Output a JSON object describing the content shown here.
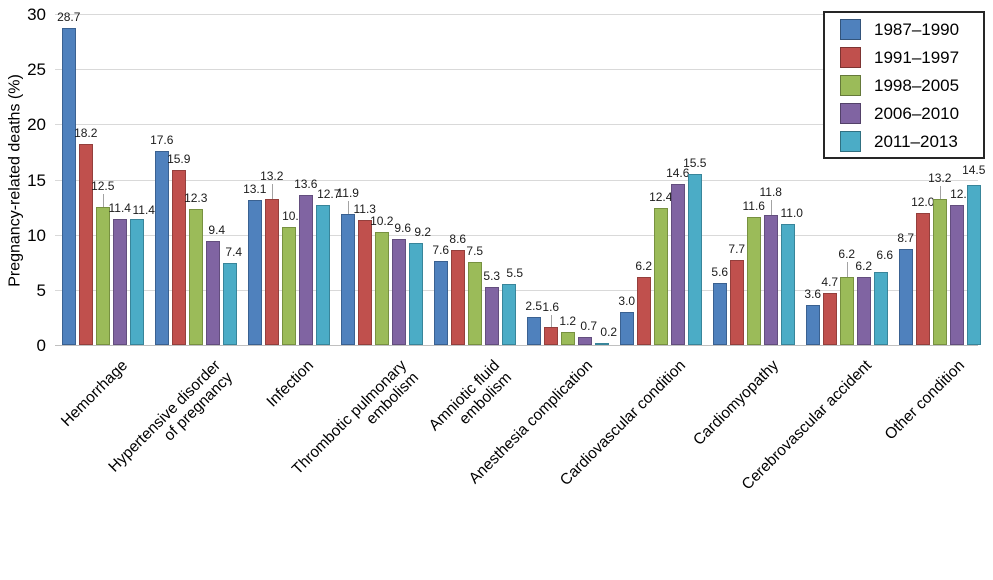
{
  "chart_data": {
    "type": "bar",
    "ylabel": "Pregnancy-related deaths (%)",
    "xlabel": "",
    "ylim": [
      0,
      30
    ],
    "yticks": [
      0,
      5,
      10,
      15,
      20,
      25,
      30
    ],
    "grid": true,
    "legend_position": "top-right",
    "categories": [
      "Hemorrhage",
      "Hypertensive disorder\nof pregnancy",
      "Infection",
      "Thrombotic pulmonary\nembolism",
      "Amniotic fluid\nembolism",
      "Anesthesia complication",
      "Cardiovascular condition",
      "Cardiomyopathy",
      "Cerebrovascular accident",
      "Other condition"
    ],
    "series": [
      {
        "name": "1987–1990",
        "color": "#4f81bd",
        "border": "#3a6191",
        "values": [
          28.7,
          17.6,
          13.1,
          11.9,
          7.6,
          2.5,
          3.0,
          5.6,
          3.6,
          8.7
        ]
      },
      {
        "name": "1991–1997",
        "color": "#c0504d",
        "border": "#943f3c",
        "values": [
          18.2,
          15.9,
          13.2,
          11.3,
          8.6,
          1.6,
          6.2,
          7.7,
          4.7,
          12.0
        ]
      },
      {
        "name": "1998–2005",
        "color": "#9bbb59",
        "border": "#779140",
        "values": [
          12.5,
          12.3,
          10.7,
          10.2,
          7.5,
          1.2,
          12.4,
          11.6,
          6.2,
          13.2
        ]
      },
      {
        "name": "2006–2010",
        "color": "#8064a2",
        "border": "#634e7e",
        "values": [
          11.4,
          9.4,
          13.6,
          9.6,
          5.3,
          0.7,
          14.6,
          11.8,
          6.2,
          12.7
        ]
      },
      {
        "name": "2011–2013",
        "color": "#4bacc6",
        "border": "#38859a",
        "values": [
          11.4,
          7.4,
          12.7,
          9.2,
          5.5,
          0.2,
          15.5,
          11.0,
          6.6,
          14.5
        ]
      }
    ],
    "label_offsets": {
      "0-2": {
        "dy": -10,
        "leader": true
      },
      "0-4": {
        "dx": 7,
        "dy": 2
      },
      "1-3": {
        "dx": 4
      },
      "1-4": {
        "dx": 4
      },
      "2-1": {
        "dy": -12,
        "leader": true
      },
      "2-2": {
        "dx": 5
      },
      "2-4": {
        "dx": 6
      },
      "3-0": {
        "dy": -10,
        "leader": true
      },
      "3-3": {
        "dx": 4
      },
      "3-4": {
        "dx": 7
      },
      "4-4": {
        "dx": 6
      },
      "5-1": {
        "dy": -9,
        "leader": true
      },
      "5-3": {
        "dx": 4
      },
      "5-4": {
        "dx": 7
      },
      "7-3": {
        "dy": -12,
        "leader": true
      },
      "7-4": {
        "dx": 4
      },
      "8-2": {
        "dy": -12,
        "leader": true
      },
      "8-4": {
        "dx": 4,
        "dy": -6
      },
      "9-2": {
        "dy": -10,
        "leader": true
      },
      "9-3": {
        "dx": 5
      },
      "9-4": {
        "dy": -4
      }
    }
  }
}
